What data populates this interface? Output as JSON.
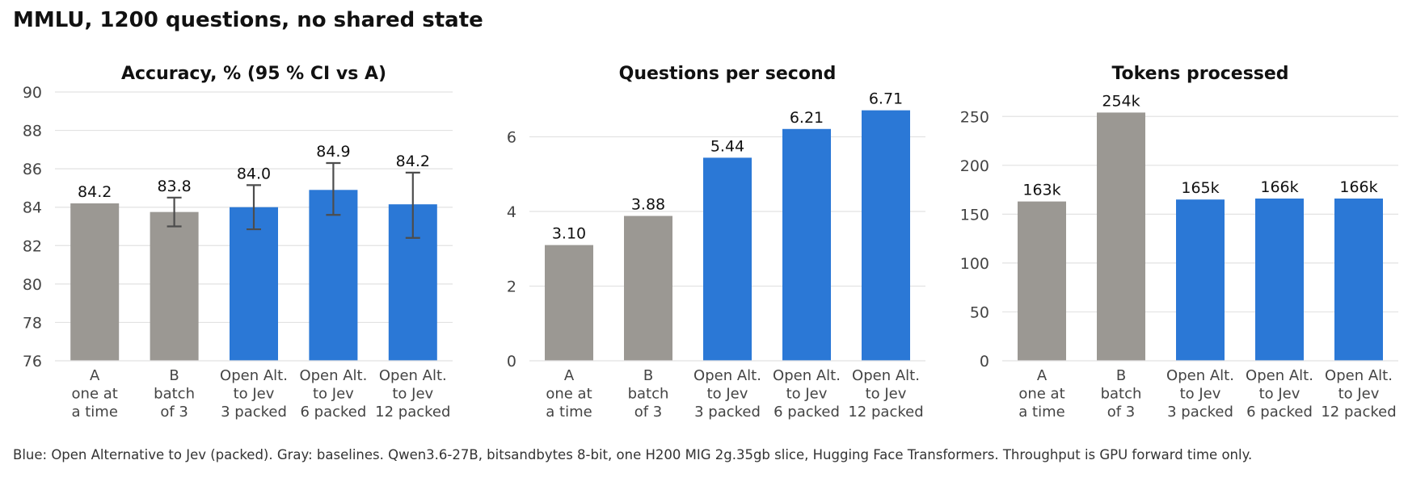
{
  "figure": {
    "title": "MMLU, 1200 questions, no shared state",
    "footnote": "Blue: Open Alternative to Jev (packed). Gray: baselines. Qwen3.6-27B, bitsandbytes 8-bit, one H200 MIG 2g.35gb slice, Hugging Face Transformers. Throughput is GPU forward time only."
  },
  "colors": {
    "baseline": "#9b9893",
    "packed": "#2b78d6",
    "grid": "#e2e2e2",
    "errorbar": "#4d4d4d",
    "text": "#111111",
    "tick": "#444444"
  },
  "chart_data": [
    {
      "type": "bar",
      "title": "Accuracy, % (95 % CI vs A)",
      "categories": [
        [
          "A",
          "one at",
          "a time"
        ],
        [
          "B",
          "batch",
          "of 3"
        ],
        [
          "Open Alt.",
          "to Jev",
          "3 packed"
        ],
        [
          "Open Alt.",
          "to Jev",
          "6 packed"
        ],
        [
          "Open Alt.",
          "to Jev",
          "12 packed"
        ]
      ],
      "values": [
        84.2,
        83.75,
        84.0,
        84.9,
        84.15
      ],
      "value_labels": [
        "84.2",
        "83.8",
        "84.0",
        "84.9",
        "84.2"
      ],
      "error_low": [
        null,
        83.0,
        82.85,
        83.6,
        82.4
      ],
      "error_high": [
        null,
        84.5,
        85.15,
        86.3,
        85.8
      ],
      "bar_groups": [
        "baseline",
        "baseline",
        "packed",
        "packed",
        "packed"
      ],
      "ylim": [
        76,
        90
      ],
      "yticks": [
        76,
        78,
        80,
        82,
        84,
        86,
        88,
        90
      ],
      "grid": true
    },
    {
      "type": "bar",
      "title": "Questions per second",
      "categories": [
        [
          "A",
          "one at",
          "a time"
        ],
        [
          "B",
          "batch",
          "of 3"
        ],
        [
          "Open Alt.",
          "to Jev",
          "3 packed"
        ],
        [
          "Open Alt.",
          "to Jev",
          "6 packed"
        ],
        [
          "Open Alt.",
          "to Jev",
          "12 packed"
        ]
      ],
      "values": [
        3.1,
        3.88,
        5.44,
        6.21,
        6.71
      ],
      "value_labels": [
        "3.10",
        "3.88",
        "5.44",
        "6.21",
        "6.71"
      ],
      "bar_groups": [
        "baseline",
        "baseline",
        "packed",
        "packed",
        "packed"
      ],
      "ylim": [
        0,
        7.2
      ],
      "yticks": [
        0,
        2,
        4,
        6
      ],
      "grid": true
    },
    {
      "type": "bar",
      "title": "Tokens processed",
      "categories": [
        [
          "A",
          "one at",
          "a time"
        ],
        [
          "B",
          "batch",
          "of 3"
        ],
        [
          "Open Alt.",
          "to Jev",
          "3 packed"
        ],
        [
          "Open Alt.",
          "to Jev",
          "6 packed"
        ],
        [
          "Open Alt.",
          "to Jev",
          "12 packed"
        ]
      ],
      "values": [
        163,
        254,
        165,
        166,
        166
      ],
      "value_labels": [
        "163k",
        "254k",
        "165k",
        "166k",
        "166k"
      ],
      "bar_groups": [
        "baseline",
        "baseline",
        "packed",
        "packed",
        "packed"
      ],
      "ylim": [
        0,
        275
      ],
      "yticks": [
        0,
        50,
        100,
        150,
        200,
        250
      ],
      "grid": true
    }
  ]
}
